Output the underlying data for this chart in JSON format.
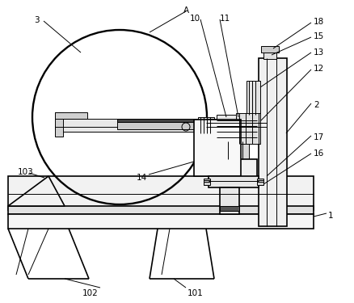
{
  "background_color": "#ffffff",
  "line_color": "#000000",
  "lw": 1.2,
  "tlw": 0.7,
  "fig_width": 4.38,
  "fig_height": 3.75,
  "dpi": 100
}
